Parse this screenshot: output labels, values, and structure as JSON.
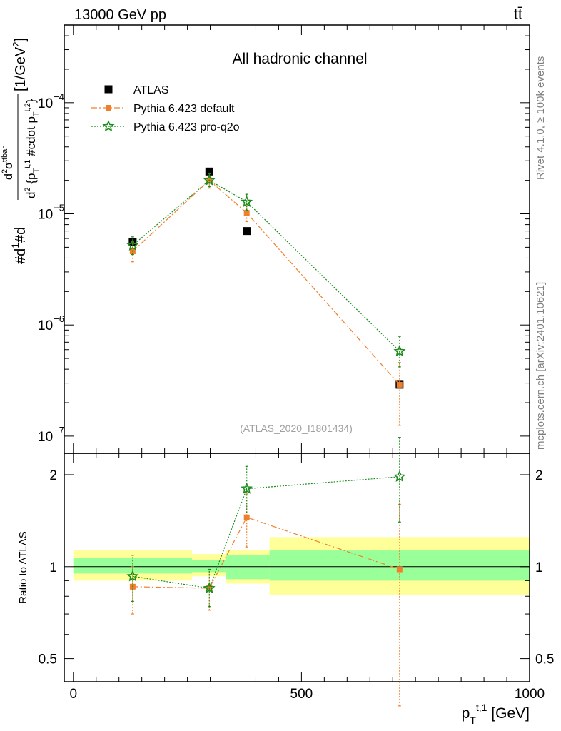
{
  "header": {
    "left": "13000 GeV pp",
    "right": "tt̄"
  },
  "side_labels": {
    "rivet": "Rivet 4.1.0, ≥ 100k events",
    "source": "mcplots.cern.ch [arXiv:2401.10621]"
  },
  "watermark": "(ATLAS_2020_I1801434)",
  "chart_data": [
    {
      "type": "scatter",
      "title": "All hadronic channel",
      "xlabel": "p_T^{t,1} [GeV]",
      "ylabel": "#d\\frac{1}{\\sigma}#d\\frac{d^2\\sigma^{ttbar}}{d^2 {p_T^{t,1} #cdot p_T^{t,2}}} [1/GeV^2]",
      "yscale": "log",
      "xlim": [
        -20,
        1000
      ],
      "ylim": [
        7e-08,
        0.0005
      ],
      "ytick_labels": [
        {
          "value": 0.0001,
          "label": "10",
          "exp": "−4"
        },
        {
          "value": 1e-05,
          "label": "10",
          "exp": "−5"
        },
        {
          "value": 1e-06,
          "label": "10",
          "exp": "−6"
        },
        {
          "value": 1e-07,
          "label": "10",
          "exp": "−7"
        }
      ],
      "legend": [
        {
          "name": "ATLAS",
          "color": "#000000",
          "marker": "square",
          "line": "none"
        },
        {
          "name": "Pythia 6.423 default",
          "color": "#f07f2c",
          "marker": "square-small",
          "line": "dashdot"
        },
        {
          "name": "Pythia 6.423 pro-q2o",
          "color": "#1a8c1a",
          "marker": "star",
          "line": "dotted"
        }
      ],
      "series": [
        {
          "name": "ATLAS",
          "x": [
            130,
            298,
            380,
            715
          ],
          "y": [
            5.6e-06,
            2.4e-05,
            7e-06,
            2.9e-07
          ],
          "yerr_lo": [
            0,
            0,
            0,
            0
          ],
          "yerr_hi": [
            0,
            0,
            0,
            0
          ]
        },
        {
          "name": "Pythia 6.423 default",
          "x": [
            130,
            298,
            380,
            715
          ],
          "y": [
            4.6e-06,
            2e-05,
            1.02e-05,
            2.9e-07
          ],
          "yerr_lo": [
            3.7e-06,
            1.7e-05,
            8.5e-06,
            1.25e-07
          ],
          "yerr_hi": [
            5.6e-06,
            2.3e-05,
            1.2e-05,
            4.6e-07
          ]
        },
        {
          "name": "Pythia 6.423 pro-q2o",
          "x": [
            130,
            298,
            380,
            715
          ],
          "y": [
            5.2e-06,
            2e-05,
            1.28e-05,
            5.8e-07
          ],
          "yerr_lo": [
            4.3e-06,
            1.75e-05,
            1.08e-05,
            4.2e-07
          ],
          "yerr_hi": [
            6.2e-06,
            2.3e-05,
            1.5e-05,
            7.9e-07
          ]
        }
      ]
    },
    {
      "type": "scatter",
      "title": "",
      "xlabel": "p_T^{t,1} [GeV]",
      "ylabel": "Ratio to ATLAS",
      "yscale": "log",
      "xlim": [
        -20,
        1000
      ],
      "ylim": [
        0.42,
        2.35
      ],
      "xticks": [
        0,
        500,
        1000
      ],
      "ytick_labels": [
        {
          "value": 0.5,
          "label": "0.5"
        },
        {
          "value": 1,
          "label": "1"
        },
        {
          "value": 2,
          "label": "2"
        }
      ],
      "bands": [
        {
          "x0": 0,
          "x1": 260,
          "inner": [
            0.95,
            1.07
          ],
          "outer": [
            0.9,
            1.13
          ]
        },
        {
          "x0": 260,
          "x1": 335,
          "inner": [
            0.96,
            1.05
          ],
          "outer": [
            0.93,
            1.1
          ]
        },
        {
          "x0": 335,
          "x1": 430,
          "inner": [
            0.91,
            1.09
          ],
          "outer": [
            0.88,
            1.13
          ]
        },
        {
          "x0": 430,
          "x1": 1000,
          "inner": [
            0.9,
            1.13
          ],
          "outer": [
            0.81,
            1.25
          ]
        }
      ],
      "series": [
        {
          "name": "Pythia 6.423 default",
          "x": [
            130,
            298,
            380,
            715
          ],
          "y": [
            0.86,
            0.85,
            1.45,
            0.98
          ],
          "yerr_lo": [
            0.7,
            0.72,
            1.16,
            0.35
          ],
          "yerr_hi": [
            1.0,
            0.98,
            1.73,
            1.6
          ]
        },
        {
          "name": "Pythia 6.423 pro-q2o",
          "x": [
            130,
            298,
            380,
            715
          ],
          "y": [
            0.93,
            0.85,
            1.8,
            1.97
          ],
          "yerr_lo": [
            0.77,
            0.74,
            1.5,
            1.4
          ],
          "yerr_hi": [
            1.09,
            0.98,
            2.13,
            2.65
          ]
        }
      ]
    }
  ]
}
